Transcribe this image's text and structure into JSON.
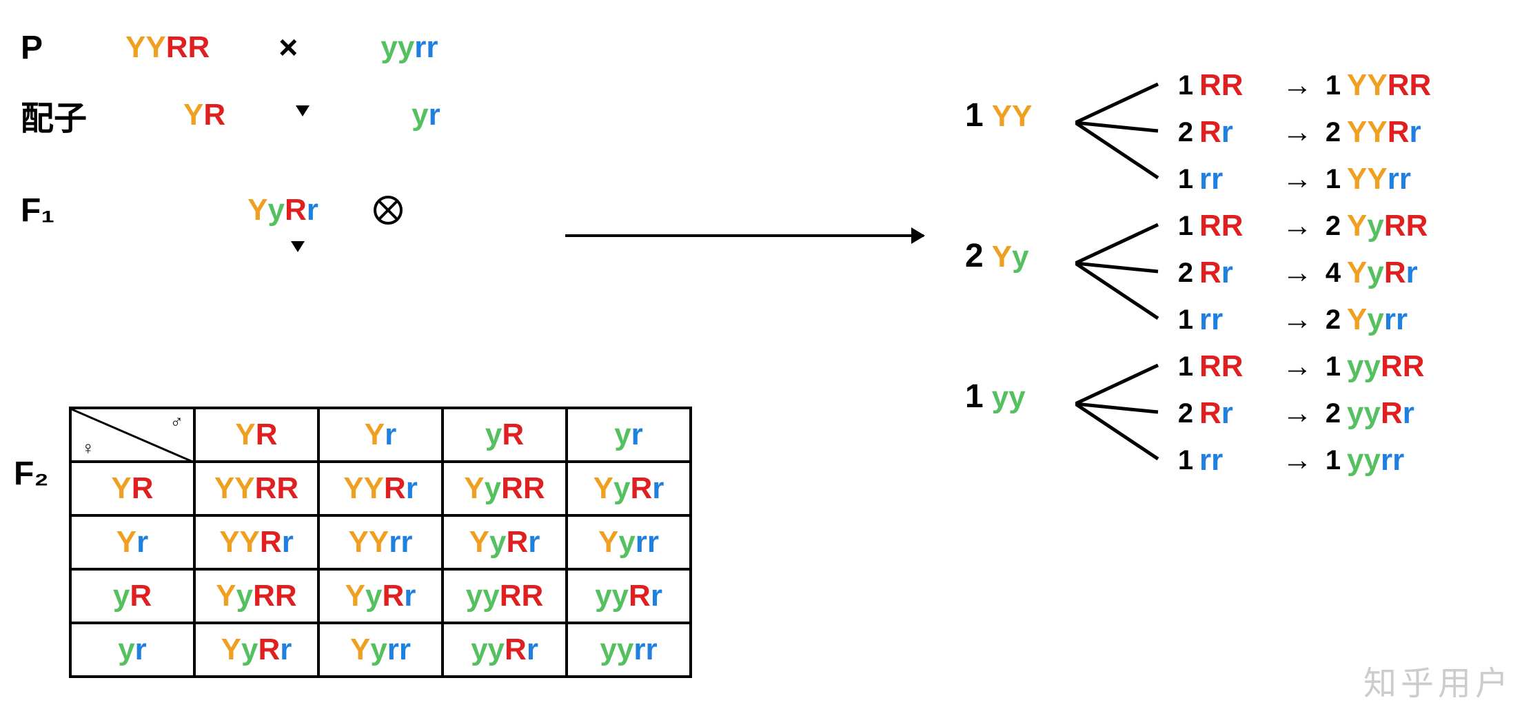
{
  "colors": {
    "Y_dom": "#f0a020",
    "y_rec": "#55c060",
    "R_dom": "#e02020",
    "r_rec": "#2080e0",
    "black": "#000000",
    "grey_watermark": "#cccccc"
  },
  "labels": {
    "P": "P",
    "gamete_cn": "配子",
    "F1": "F₁",
    "F2": "F₂"
  },
  "parents": {
    "P1": [
      [
        "Y",
        "Y_dom"
      ],
      [
        "Y",
        "Y_dom"
      ],
      [
        "R",
        "R_dom"
      ],
      [
        "R",
        "R_dom"
      ]
    ],
    "P2": [
      [
        "y",
        "y_rec"
      ],
      [
        "y",
        "y_rec"
      ],
      [
        "r",
        "r_rec"
      ],
      [
        "r",
        "r_rec"
      ]
    ],
    "cross_symbol": "×"
  },
  "gametes": {
    "g1": [
      [
        "Y",
        "Y_dom"
      ],
      [
        "R",
        "R_dom"
      ]
    ],
    "g2": [
      [
        "y",
        "y_rec"
      ],
      [
        "r",
        "r_rec"
      ]
    ]
  },
  "F1_genotype": [
    [
      "Y",
      "Y_dom"
    ],
    [
      "y",
      "y_rec"
    ],
    [
      "R",
      "R_dom"
    ],
    [
      "r",
      "r_rec"
    ]
  ],
  "punnett": {
    "male_symbol": "♂",
    "female_symbol": "♀",
    "col_headers": [
      [
        [
          "Y",
          "Y_dom"
        ],
        [
          "R",
          "R_dom"
        ]
      ],
      [
        [
          "Y",
          "Y_dom"
        ],
        [
          "r",
          "r_rec"
        ]
      ],
      [
        [
          "y",
          "y_rec"
        ],
        [
          "R",
          "R_dom"
        ]
      ],
      [
        [
          "y",
          "y_rec"
        ],
        [
          "r",
          "r_rec"
        ]
      ]
    ],
    "row_headers": [
      [
        [
          "Y",
          "Y_dom"
        ],
        [
          "R",
          "R_dom"
        ]
      ],
      [
        [
          "Y",
          "Y_dom"
        ],
        [
          "r",
          "r_rec"
        ]
      ],
      [
        [
          "y",
          "y_rec"
        ],
        [
          "R",
          "R_dom"
        ]
      ],
      [
        [
          "y",
          "y_rec"
        ],
        [
          "r",
          "r_rec"
        ]
      ]
    ],
    "cells": [
      [
        [
          [
            "Y",
            "Y_dom"
          ],
          [
            "Y",
            "Y_dom"
          ],
          [
            "R",
            "R_dom"
          ],
          [
            "R",
            "R_dom"
          ]
        ],
        [
          [
            "Y",
            "Y_dom"
          ],
          [
            "Y",
            "Y_dom"
          ],
          [
            "R",
            "R_dom"
          ],
          [
            "r",
            "r_rec"
          ]
        ],
        [
          [
            "Y",
            "Y_dom"
          ],
          [
            "y",
            "y_rec"
          ],
          [
            "R",
            "R_dom"
          ],
          [
            "R",
            "R_dom"
          ]
        ],
        [
          [
            "Y",
            "Y_dom"
          ],
          [
            "y",
            "y_rec"
          ],
          [
            "R",
            "R_dom"
          ],
          [
            "r",
            "r_rec"
          ]
        ]
      ],
      [
        [
          [
            "Y",
            "Y_dom"
          ],
          [
            "Y",
            "Y_dom"
          ],
          [
            "R",
            "R_dom"
          ],
          [
            "r",
            "r_rec"
          ]
        ],
        [
          [
            "Y",
            "Y_dom"
          ],
          [
            "Y",
            "Y_dom"
          ],
          [
            "r",
            "r_rec"
          ],
          [
            "r",
            "r_rec"
          ]
        ],
        [
          [
            "Y",
            "Y_dom"
          ],
          [
            "y",
            "y_rec"
          ],
          [
            "R",
            "R_dom"
          ],
          [
            "r",
            "r_rec"
          ]
        ],
        [
          [
            "Y",
            "Y_dom"
          ],
          [
            "y",
            "y_rec"
          ],
          [
            "r",
            "r_rec"
          ],
          [
            "r",
            "r_rec"
          ]
        ]
      ],
      [
        [
          [
            "Y",
            "Y_dom"
          ],
          [
            "y",
            "y_rec"
          ],
          [
            "R",
            "R_dom"
          ],
          [
            "R",
            "R_dom"
          ]
        ],
        [
          [
            "Y",
            "Y_dom"
          ],
          [
            "y",
            "y_rec"
          ],
          [
            "R",
            "R_dom"
          ],
          [
            "r",
            "r_rec"
          ]
        ],
        [
          [
            "y",
            "y_rec"
          ],
          [
            "y",
            "y_rec"
          ],
          [
            "R",
            "R_dom"
          ],
          [
            "R",
            "R_dom"
          ]
        ],
        [
          [
            "y",
            "y_rec"
          ],
          [
            "y",
            "y_rec"
          ],
          [
            "R",
            "R_dom"
          ],
          [
            "r",
            "r_rec"
          ]
        ]
      ],
      [
        [
          [
            "Y",
            "Y_dom"
          ],
          [
            "y",
            "y_rec"
          ],
          [
            "R",
            "R_dom"
          ],
          [
            "r",
            "r_rec"
          ]
        ],
        [
          [
            "Y",
            "Y_dom"
          ],
          [
            "y",
            "y_rec"
          ],
          [
            "r",
            "r_rec"
          ],
          [
            "r",
            "r_rec"
          ]
        ],
        [
          [
            "y",
            "y_rec"
          ],
          [
            "y",
            "y_rec"
          ],
          [
            "R",
            "R_dom"
          ],
          [
            "r",
            "r_rec"
          ]
        ],
        [
          [
            "y",
            "y_rec"
          ],
          [
            "y",
            "y_rec"
          ],
          [
            "r",
            "r_rec"
          ],
          [
            "r",
            "r_rec"
          ]
        ]
      ]
    ]
  },
  "tree": {
    "groups": [
      {
        "ratio": "1",
        "geno": [
          [
            "Y",
            "Y_dom"
          ],
          [
            "Y",
            "Y_dom"
          ]
        ],
        "branches": [
          {
            "ratio": "1",
            "geno": [
              [
                "R",
                "R_dom"
              ],
              [
                "R",
                "R_dom"
              ]
            ],
            "result_ratio": "1",
            "result": [
              [
                "Y",
                "Y_dom"
              ],
              [
                "Y",
                "Y_dom"
              ],
              [
                "R",
                "R_dom"
              ],
              [
                "R",
                "R_dom"
              ]
            ]
          },
          {
            "ratio": "2",
            "geno": [
              [
                "R",
                "R_dom"
              ],
              [
                "r",
                "r_rec"
              ]
            ],
            "result_ratio": "2",
            "result": [
              [
                "Y",
                "Y_dom"
              ],
              [
                "Y",
                "Y_dom"
              ],
              [
                "R",
                "R_dom"
              ],
              [
                "r",
                "r_rec"
              ]
            ]
          },
          {
            "ratio": "1",
            "geno": [
              [
                "r",
                "r_rec"
              ],
              [
                "r",
                "r_rec"
              ]
            ],
            "result_ratio": "1",
            "result": [
              [
                "Y",
                "Y_dom"
              ],
              [
                "Y",
                "Y_dom"
              ],
              [
                "r",
                "r_rec"
              ],
              [
                "r",
                "r_rec"
              ]
            ]
          }
        ]
      },
      {
        "ratio": "2",
        "geno": [
          [
            "Y",
            "Y_dom"
          ],
          [
            "y",
            "y_rec"
          ]
        ],
        "branches": [
          {
            "ratio": "1",
            "geno": [
              [
                "R",
                "R_dom"
              ],
              [
                "R",
                "R_dom"
              ]
            ],
            "result_ratio": "2",
            "result": [
              [
                "Y",
                "Y_dom"
              ],
              [
                "y",
                "y_rec"
              ],
              [
                "R",
                "R_dom"
              ],
              [
                "R",
                "R_dom"
              ]
            ]
          },
          {
            "ratio": "2",
            "geno": [
              [
                "R",
                "R_dom"
              ],
              [
                "r",
                "r_rec"
              ]
            ],
            "result_ratio": "4",
            "result": [
              [
                "Y",
                "Y_dom"
              ],
              [
                "y",
                "y_rec"
              ],
              [
                "R",
                "R_dom"
              ],
              [
                "r",
                "r_rec"
              ]
            ]
          },
          {
            "ratio": "1",
            "geno": [
              [
                "r",
                "r_rec"
              ],
              [
                "r",
                "r_rec"
              ]
            ],
            "result_ratio": "2",
            "result": [
              [
                "Y",
                "Y_dom"
              ],
              [
                "y",
                "y_rec"
              ],
              [
                "r",
                "r_rec"
              ],
              [
                "r",
                "r_rec"
              ]
            ]
          }
        ]
      },
      {
        "ratio": "1",
        "geno": [
          [
            "y",
            "y_rec"
          ],
          [
            "y",
            "y_rec"
          ]
        ],
        "branches": [
          {
            "ratio": "1",
            "geno": [
              [
                "R",
                "R_dom"
              ],
              [
                "R",
                "R_dom"
              ]
            ],
            "result_ratio": "1",
            "result": [
              [
                "y",
                "y_rec"
              ],
              [
                "y",
                "y_rec"
              ],
              [
                "R",
                "R_dom"
              ],
              [
                "R",
                "R_dom"
              ]
            ]
          },
          {
            "ratio": "2",
            "geno": [
              [
                "R",
                "R_dom"
              ],
              [
                "r",
                "r_rec"
              ]
            ],
            "result_ratio": "2",
            "result": [
              [
                "y",
                "y_rec"
              ],
              [
                "y",
                "y_rec"
              ],
              [
                "R",
                "R_dom"
              ],
              [
                "r",
                "r_rec"
              ]
            ]
          },
          {
            "ratio": "1",
            "geno": [
              [
                "r",
                "r_rec"
              ],
              [
                "r",
                "r_rec"
              ]
            ],
            "result_ratio": "1",
            "result": [
              [
                "y",
                "y_rec"
              ],
              [
                "y",
                "y_rec"
              ],
              [
                "r",
                "r_rec"
              ],
              [
                "r",
                "r_rec"
              ]
            ]
          }
        ]
      }
    ]
  },
  "watermark": "知乎用户"
}
